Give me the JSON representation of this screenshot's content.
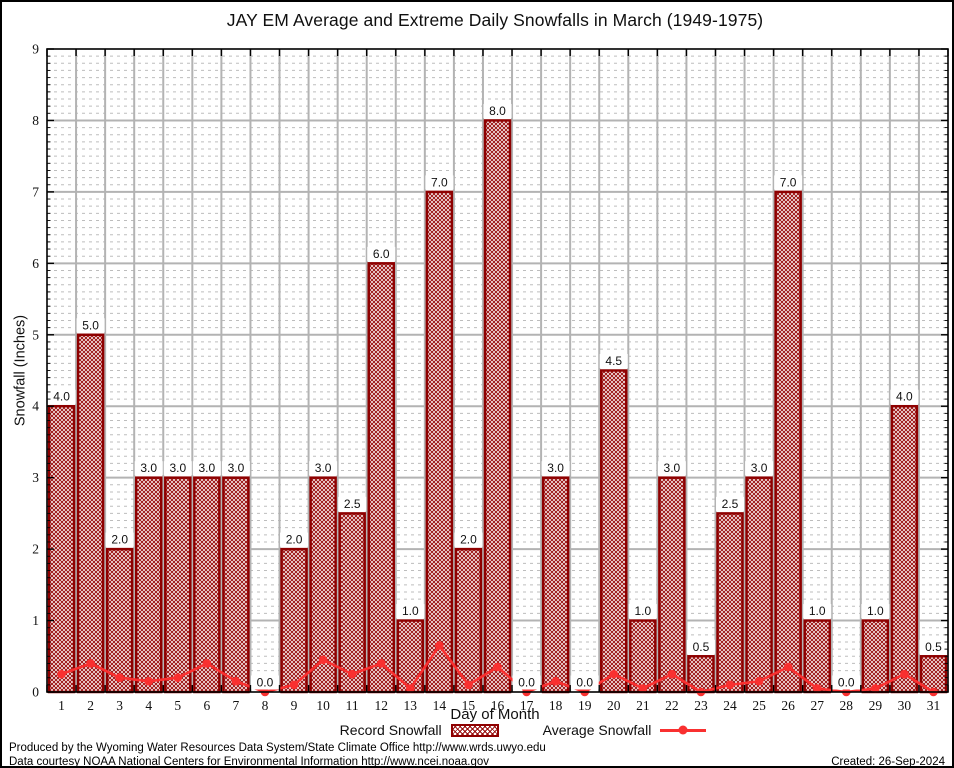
{
  "chart_data": {
    "type": "bar",
    "title": "JAY EM Average and Extreme Daily Snowfalls in March (1949-1975)",
    "xlabel": "Day of Month",
    "ylabel": "Snowfall (Inches)",
    "ylim": [
      0,
      9
    ],
    "ytick_step": 1,
    "grid": {
      "major": true,
      "minor_dashed_step": 0.1
    },
    "legend_position": "bottom",
    "categories": [
      "1",
      "2",
      "3",
      "4",
      "5",
      "6",
      "7",
      "8",
      "9",
      "10",
      "11",
      "12",
      "13",
      "14",
      "15",
      "16",
      "17",
      "18",
      "19",
      "20",
      "21",
      "22",
      "23",
      "24",
      "25",
      "26",
      "27",
      "28",
      "29",
      "30",
      "31"
    ],
    "series": [
      {
        "name": "Record Snowfall",
        "kind": "bar",
        "color": "#8e0000",
        "values": [
          4.0,
          5.0,
          2.0,
          3.0,
          3.0,
          3.0,
          3.0,
          0.0,
          2.0,
          3.0,
          2.5,
          6.0,
          1.0,
          7.0,
          2.0,
          8.0,
          0.0,
          3.0,
          0.0,
          4.5,
          1.0,
          3.0,
          0.5,
          2.5,
          3.0,
          7.0,
          1.0,
          0.0,
          1.0,
          4.0,
          0.5
        ],
        "bar_labels": [
          "4.0",
          "5.0",
          "2.0",
          "3.0",
          "3.0",
          "3.0",
          "3.0",
          "0.0",
          "2.0",
          "3.0",
          "2.5",
          "6.0",
          "1.0",
          "7.0",
          "2.0",
          "8.0",
          "0.0",
          "3.0",
          "0.0",
          "4.5",
          "1.0",
          "3.0",
          "0.5",
          "2.5",
          "3.0",
          "7.0",
          "1.0",
          "0.0",
          "1.0",
          "4.0",
          "0.5"
        ]
      },
      {
        "name": "Average Snowfall",
        "kind": "line",
        "color": "#f93030",
        "values": [
          0.25,
          0.4,
          0.2,
          0.15,
          0.2,
          0.4,
          0.15,
          0.0,
          0.1,
          0.45,
          0.25,
          0.4,
          0.05,
          0.65,
          0.1,
          0.35,
          0.0,
          0.15,
          0.0,
          0.25,
          0.05,
          0.25,
          0.0,
          0.1,
          0.15,
          0.35,
          0.05,
          0.0,
          0.05,
          0.25,
          0.0
        ]
      }
    ]
  },
  "colors": {
    "bar_edge": "#8e0000",
    "bar_hatch": "#9b1111",
    "line": "#f93030",
    "grid_major": "#b3b3b3",
    "grid_minor": "#bdbdbd",
    "axis": "#000000",
    "text": "#111111"
  },
  "footer": {
    "line1": "Produced by the Wyoming Water Resources Data System/State Climate Office http://www.wrds.uwyo.edu",
    "line2": "Data courtesy NOAA National Centers for Environmental Information http://www.ncei.noaa.gov",
    "created": "Created: 26-Sep-2024"
  }
}
